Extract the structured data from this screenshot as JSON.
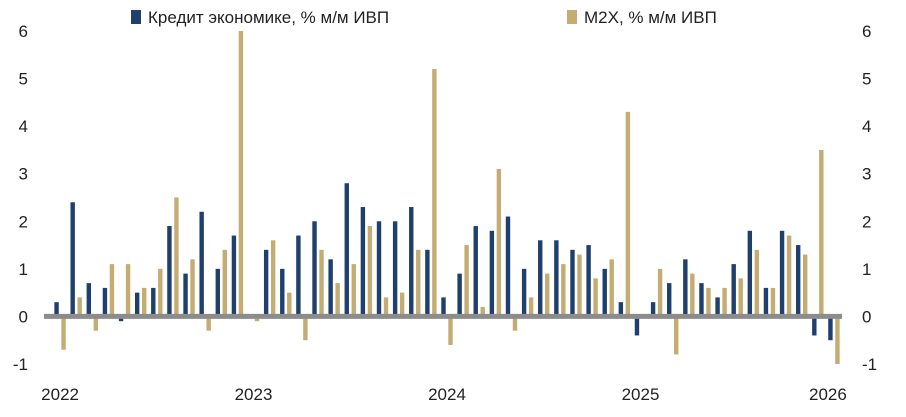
{
  "chart_data": {
    "type": "bar",
    "ylim": [
      -1,
      6
    ],
    "yticks": [
      -1,
      0,
      1,
      2,
      3,
      4,
      5,
      6
    ],
    "x_tick_labels": [
      "2022",
      "2023",
      "2024",
      "2025",
      "2026"
    ],
    "grid": false,
    "dual_y_axis_same_scale": true,
    "legend_position": "top",
    "zero_line_color": "#8c8c8c",
    "series": [
      {
        "name": "Кредит экономике, % м/м ИВП",
        "color": "#1f3f6c",
        "values": [
          0.3,
          2.4,
          0.7,
          0.6,
          -0.1,
          0.5,
          0.6,
          1.9,
          0.9,
          2.2,
          1.0,
          1.7,
          0.0,
          1.4,
          1.0,
          1.7,
          2.0,
          1.2,
          2.8,
          2.3,
          2.0,
          2.0,
          2.3,
          1.4,
          0.4,
          0.9,
          1.9,
          1.8,
          2.1,
          1.0,
          1.6,
          1.6,
          1.4,
          1.5,
          1.0,
          0.3,
          -0.4,
          0.3,
          0.7,
          1.2,
          0.7,
          0.4,
          1.1,
          1.8,
          0.6,
          1.8,
          1.5,
          -0.4,
          -0.5
        ]
      },
      {
        "name": "M2X, % м/м ИВП",
        "color": "#c4ac72",
        "values": [
          -0.7,
          0.4,
          -0.3,
          1.1,
          1.1,
          0.6,
          1.0,
          2.5,
          1.2,
          -0.3,
          1.4,
          6.0,
          -0.1,
          1.6,
          0.5,
          -0.5,
          1.4,
          0.7,
          1.1,
          1.9,
          0.4,
          0.5,
          1.4,
          5.2,
          -0.6,
          1.5,
          0.2,
          3.1,
          -0.3,
          0.4,
          0.9,
          1.1,
          1.3,
          0.8,
          1.2,
          4.3,
          0.0,
          1.0,
          -0.8,
          0.9,
          0.6,
          0.6,
          0.8,
          1.4,
          0.6,
          1.7,
          1.3,
          3.5,
          -1.0
        ]
      }
    ]
  }
}
